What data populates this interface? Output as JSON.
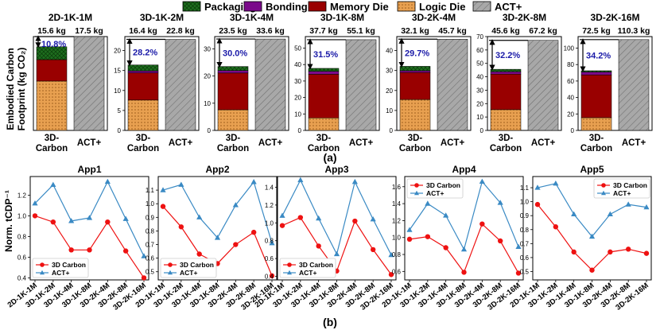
{
  "figure": {
    "caption_a": "(a)",
    "caption_b": "(b)",
    "top_ylabel_line1": "Embodied Carbon",
    "top_ylabel_line2": "Footprint (kg CO₂)",
    "bottom_ylabel": "Norm. tCDP⁻¹"
  },
  "legend": {
    "items": [
      {
        "label": "Packaging",
        "color": "#1e6e1e",
        "pattern": "cross"
      },
      {
        "label": "Bonding",
        "color": "#7a0a8a",
        "pattern": "none"
      },
      {
        "label": "Memory Die",
        "color": "#990000",
        "pattern": "none"
      },
      {
        "label": "Logic Die",
        "color": "#e8a050",
        "pattern": "dots"
      },
      {
        "label": "ACT+",
        "color": "#a8a8a8",
        "pattern": "hatch"
      }
    ]
  },
  "chart_data": [
    {
      "type": "bar",
      "stacked": true,
      "panel": "a",
      "categories": [
        "3D-\nCarbon",
        "ACT+"
      ],
      "subplots": [
        {
          "title": "2D-1K-1M",
          "total_labels": [
            "15.6 kg",
            "17.5 kg"
          ],
          "ymax": 17.5,
          "ticks": [],
          "pct": "10.8%",
          "segments": {
            "Logic Die": 9.2,
            "Memory Die": 4.0,
            "Bonding": 0.0,
            "Packaging": 2.4
          },
          "act": 17.5
        },
        {
          "title": "3D-1K-2M",
          "total_labels": [
            "16.4 kg",
            "22.8 kg"
          ],
          "ymax": 23.5,
          "ticks": [
            0,
            5,
            10,
            15,
            20
          ],
          "pct": "28.2%",
          "segments": {
            "Logic Die": 7.6,
            "Memory Die": 6.8,
            "Bonding": 0.5,
            "Packaging": 1.5
          },
          "act": 22.8
        },
        {
          "title": "3D-1K-4M",
          "total_labels": [
            "23.5 kg",
            "33.6 kg"
          ],
          "ymax": 34.5,
          "ticks": [
            0,
            10,
            20,
            30
          ],
          "pct": "30.0%",
          "segments": {
            "Logic Die": 7.6,
            "Memory Die": 13.5,
            "Bonding": 0.9,
            "Packaging": 1.5
          },
          "act": 33.6
        },
        {
          "title": "3D-1K-8M",
          "total_labels": [
            "37.7 kg",
            "55.1 kg"
          ],
          "ymax": 57,
          "ticks": [
            0,
            10,
            20,
            30,
            40,
            50
          ],
          "pct": "31.5%",
          "segments": {
            "Logic Die": 7.6,
            "Memory Die": 26.5,
            "Bonding": 1.8,
            "Packaging": 1.8
          },
          "act": 55.1
        },
        {
          "title": "3D-2K-4M",
          "total_labels": [
            "32.1 kg",
            "45.7 kg"
          ],
          "ymax": 47,
          "ticks": [
            0,
            10,
            20,
            30,
            40
          ],
          "pct": "29.7%",
          "segments": {
            "Logic Die": 15.5,
            "Memory Die": 13.5,
            "Bonding": 0.9,
            "Packaging": 2.2
          },
          "act": 45.7
        },
        {
          "title": "3D-2K-8M",
          "total_labels": [
            "45.6 kg",
            "67.2 kg"
          ],
          "ymax": 70,
          "ticks": [
            0,
            10,
            20,
            30,
            40,
            50,
            60,
            70
          ],
          "pct": "32.2%",
          "segments": {
            "Logic Die": 15.5,
            "Memory Die": 26.5,
            "Bonding": 1.8,
            "Packaging": 1.8
          },
          "act": 67.2
        },
        {
          "title": "3D-2K-16M",
          "total_labels": [
            "72.5 kg",
            "110.3 kg"
          ],
          "ymax": 114,
          "ticks": [
            0,
            20,
            40,
            60,
            80,
            100
          ],
          "pct": "34.2%",
          "segments": {
            "Logic Die": 15.5,
            "Memory Die": 52.0,
            "Bonding": 3.5,
            "Packaging": 1.5
          },
          "act": 110.3
        }
      ]
    },
    {
      "type": "line",
      "panel": "b",
      "categories": [
        "2D-1K-1M",
        "3D-1K-2M",
        "3D-1K-4M",
        "3D-1K-8M",
        "3D-2K-4M",
        "3D-2K-8M",
        "3D-2K-16M"
      ],
      "subplots": [
        {
          "title": "App1",
          "ylim": [
            0.38,
            1.38
          ],
          "ticks": [
            0.4,
            0.6,
            0.8,
            1.0,
            1.2
          ],
          "legend": "bottom-left",
          "series": [
            {
              "name": "3D Carbon",
              "values": [
                1.0,
                0.94,
                0.67,
                0.67,
                0.94,
                0.66,
                0.4
              ]
            },
            {
              "name": "ACT+",
              "values": [
                1.12,
                1.3,
                0.95,
                0.98,
                1.33,
                0.97,
                0.61
              ]
            }
          ]
        },
        {
          "title": "App2",
          "ylim": [
            0.44,
            1.2
          ],
          "ticks": [
            0.5,
            0.6,
            0.7,
            0.8,
            0.9,
            1.0,
            1.1
          ],
          "legend": "bottom-left",
          "series": [
            {
              "name": "3D Carbon",
              "values": [
                0.98,
                0.83,
                0.63,
                0.56,
                0.7,
                0.79,
                0.47
              ]
            },
            {
              "name": "ACT+",
              "values": [
                1.1,
                1.14,
                0.9,
                0.75,
                0.99,
                1.16,
                0.71
              ]
            }
          ]
        },
        {
          "title": "App3",
          "ylim": [
            0.36,
            1.52
          ],
          "ticks": [
            0.4,
            0.6,
            0.8,
            1.0,
            1.2,
            1.4
          ],
          "legend": "bottom-left",
          "series": [
            {
              "name": "3D Carbon",
              "values": [
                0.97,
                1.06,
                0.74,
                0.46,
                1.02,
                0.7,
                0.42
              ]
            },
            {
              "name": "ACT+",
              "values": [
                1.08,
                1.48,
                1.05,
                0.65,
                1.46,
                1.04,
                0.64
              ]
            }
          ]
        },
        {
          "title": "App4",
          "ylim": [
            0.5,
            1.72
          ],
          "ticks": [
            0.6,
            0.8,
            1.0,
            1.2,
            1.4,
            1.6
          ],
          "legend": "top-left",
          "series": [
            {
              "name": "3D Carbon",
              "values": [
                0.98,
                1.01,
                0.88,
                0.59,
                1.16,
                0.96,
                0.58
              ]
            },
            {
              "name": "ACT+",
              "values": [
                1.09,
                1.4,
                1.26,
                0.86,
                1.66,
                1.41,
                0.89
              ]
            }
          ]
        },
        {
          "title": "App5",
          "ylim": [
            0.44,
            1.18
          ],
          "ticks": [
            0.5,
            0.6,
            0.7,
            0.8,
            0.9,
            1.0,
            1.1
          ],
          "legend": "top-right",
          "series": [
            {
              "name": "3D Carbon",
              "values": [
                0.98,
                0.82,
                0.64,
                0.51,
                0.64,
                0.66,
                0.63
              ]
            },
            {
              "name": "ACT+",
              "values": [
                1.1,
                1.13,
                0.91,
                0.75,
                0.91,
                0.98,
                0.96
              ]
            }
          ]
        }
      ]
    }
  ],
  "colors": {
    "carbon_line": "#ee1111",
    "act_line": "#3a8ac4",
    "arrow_text": "#1a1aa8",
    "logic": "#e8a050",
    "memory": "#990000",
    "bonding": "#7a0a8a",
    "packaging": "#1e6e1e",
    "act_bar": "#a8a8a8"
  }
}
